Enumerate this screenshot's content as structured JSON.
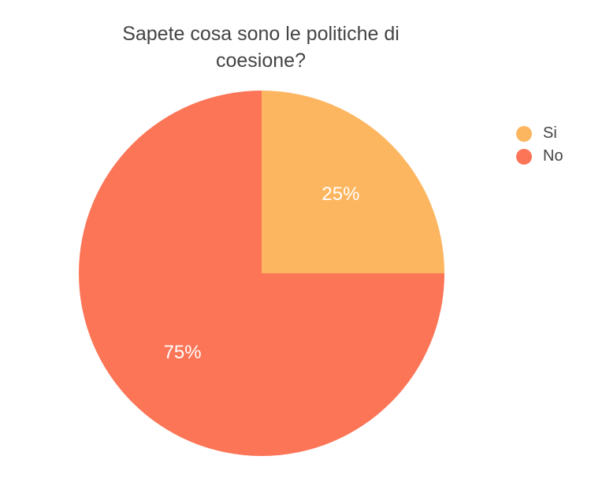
{
  "chart_data": {
    "type": "pie",
    "title_lines": [
      "Sapete cosa sono le politiche di",
      "coesione?"
    ],
    "categories": [
      "Si",
      "No"
    ],
    "values": [
      25,
      75
    ],
    "data_labels": [
      "25%",
      "75%"
    ],
    "colors": [
      "#FDB660",
      "#FC7557"
    ],
    "legend_placement": "right",
    "start_angle_deg": 0,
    "direction": "clockwise"
  }
}
